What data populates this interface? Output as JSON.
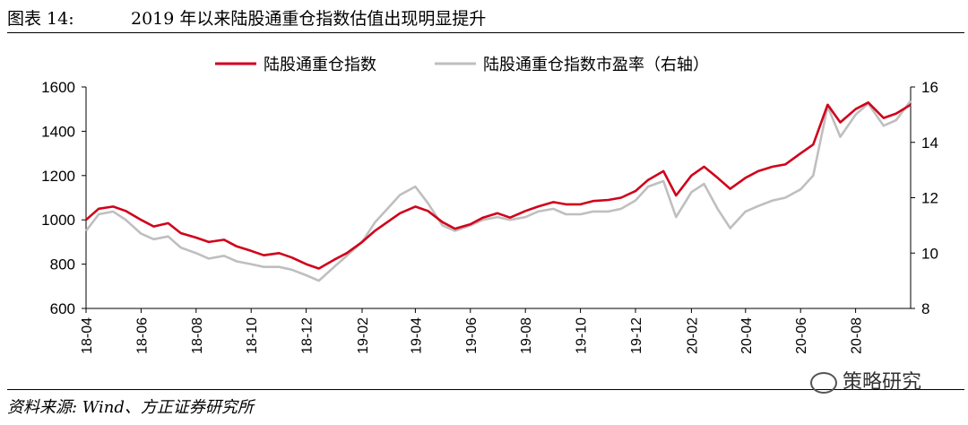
{
  "header": {
    "figure_label": "图表 14:",
    "title": "2019 年以来陆股通重仓指数估值出现明显提升"
  },
  "source": "资料来源: Wind、方正证券研究所",
  "watermark": "策略研究",
  "colors": {
    "primary": "#d0021b",
    "secondary": "#bfbfbf"
  },
  "chart_data": {
    "type": "line",
    "title": "",
    "legend_position": "top-center",
    "x_ticks": [
      "18-04",
      "18-06",
      "18-08",
      "18-10",
      "18-12",
      "19-02",
      "19-04",
      "19-06",
      "19-08",
      "19-10",
      "19-12",
      "20-02",
      "20-04",
      "20-06",
      "20-08"
    ],
    "x_range": [
      "2018-04",
      "2020-10"
    ],
    "y_left": {
      "min": 600,
      "max": 1600,
      "ticks": [
        600,
        800,
        1000,
        1200,
        1400,
        1600
      ]
    },
    "y_right": {
      "min": 8,
      "max": 16,
      "ticks": [
        8,
        10,
        12,
        14,
        16
      ]
    },
    "grid": false,
    "series": [
      {
        "name": "陆股通重仓指数",
        "axis": "left",
        "color": "#d0021b",
        "x": [
          "2018-04",
          "2018-04-15",
          "2018-05",
          "2018-05-15",
          "2018-06",
          "2018-06-15",
          "2018-07",
          "2018-07-15",
          "2018-08",
          "2018-08-15",
          "2018-09",
          "2018-09-15",
          "2018-10",
          "2018-10-15",
          "2018-11",
          "2018-11-15",
          "2018-12",
          "2018-12-15",
          "2019-01",
          "2019-01-15",
          "2019-02",
          "2019-02-15",
          "2019-03",
          "2019-03-15",
          "2019-04",
          "2019-04-15",
          "2019-05",
          "2019-05-15",
          "2019-06",
          "2019-06-15",
          "2019-07",
          "2019-07-15",
          "2019-08",
          "2019-08-15",
          "2019-09",
          "2019-09-15",
          "2019-10",
          "2019-10-15",
          "2019-11",
          "2019-11-15",
          "2019-12",
          "2019-12-15",
          "2020-01",
          "2020-01-15",
          "2020-02",
          "2020-02-15",
          "2020-03",
          "2020-03-15",
          "2020-04",
          "2020-04-15",
          "2020-05",
          "2020-05-15",
          "2020-06",
          "2020-06-15",
          "2020-07",
          "2020-07-15",
          "2020-08",
          "2020-08-15",
          "2020-09",
          "2020-09-15",
          "2020-10"
        ],
        "values": [
          1000,
          1050,
          1060,
          1040,
          1000,
          970,
          985,
          940,
          920,
          900,
          910,
          880,
          860,
          840,
          850,
          830,
          800,
          780,
          820,
          850,
          900,
          950,
          990,
          1030,
          1060,
          1040,
          990,
          960,
          980,
          1010,
          1030,
          1010,
          1040,
          1060,
          1080,
          1070,
          1070,
          1085,
          1090,
          1100,
          1130,
          1180,
          1220,
          1110,
          1200,
          1240,
          1190,
          1140,
          1190,
          1220,
          1240,
          1250,
          1300,
          1340,
          1520,
          1440,
          1500,
          1530,
          1460,
          1480,
          1520
        ]
      },
      {
        "name": "陆股通重仓指数市盈率（右轴）",
        "axis": "right",
        "color": "#bfbfbf",
        "x": [
          "2018-04",
          "2018-04-15",
          "2018-05",
          "2018-05-15",
          "2018-06",
          "2018-06-15",
          "2018-07",
          "2018-07-15",
          "2018-08",
          "2018-08-15",
          "2018-09",
          "2018-09-15",
          "2018-10",
          "2018-10-15",
          "2018-11",
          "2018-11-15",
          "2018-12",
          "2018-12-15",
          "2019-01",
          "2019-01-15",
          "2019-02",
          "2019-02-15",
          "2019-03",
          "2019-03-15",
          "2019-04",
          "2019-04-15",
          "2019-05",
          "2019-05-15",
          "2019-06",
          "2019-06-15",
          "2019-07",
          "2019-07-15",
          "2019-08",
          "2019-08-15",
          "2019-09",
          "2019-09-15",
          "2019-10",
          "2019-10-15",
          "2019-11",
          "2019-11-15",
          "2019-12",
          "2019-12-15",
          "2020-01",
          "2020-01-15",
          "2020-02",
          "2020-02-15",
          "2020-03",
          "2020-03-15",
          "2020-04",
          "2020-04-15",
          "2020-05",
          "2020-05-15",
          "2020-06",
          "2020-06-15",
          "2020-07",
          "2020-07-15",
          "2020-08",
          "2020-08-15",
          "2020-09",
          "2020-09-15",
          "2020-10"
        ],
        "values": [
          10.8,
          11.4,
          11.5,
          11.2,
          10.7,
          10.5,
          10.6,
          10.2,
          10.0,
          9.8,
          9.9,
          9.7,
          9.6,
          9.5,
          9.5,
          9.4,
          9.2,
          9.0,
          9.5,
          9.9,
          10.4,
          11.1,
          11.6,
          12.1,
          12.4,
          11.8,
          11.0,
          10.8,
          11.0,
          11.2,
          11.3,
          11.2,
          11.3,
          11.5,
          11.6,
          11.4,
          11.4,
          11.5,
          11.5,
          11.6,
          11.9,
          12.4,
          12.6,
          11.3,
          12.2,
          12.5,
          11.6,
          10.9,
          11.5,
          11.7,
          11.9,
          12.0,
          12.3,
          12.8,
          15.3,
          14.2,
          15.0,
          15.4,
          14.6,
          14.8,
          15.5
        ]
      }
    ]
  }
}
